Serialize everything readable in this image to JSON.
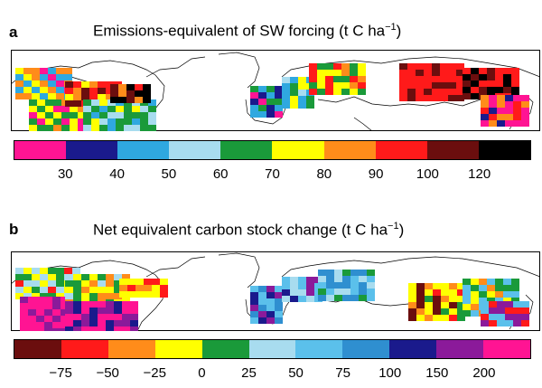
{
  "panel_a": {
    "letter": "a",
    "title_main": "Emissions-equivalent of SW forcing (t C ha",
    "title_exp": "−1",
    "title_close": ")",
    "colorbar_colors": [
      "#ff1493",
      "#1a1a8c",
      "#2fa8e0",
      "#a8dcef",
      "#1a9a3a",
      "#ffff00",
      "#ff8c1a",
      "#ff1a1a",
      "#6b0e0e",
      "#000000"
    ],
    "ticks": [
      "30",
      "40",
      "50",
      "60",
      "70",
      "80",
      "90",
      "100",
      "120"
    ]
  },
  "panel_b": {
    "letter": "b",
    "title_main": "Net equivalent carbon stock change (t C ha",
    "title_exp": "−1",
    "title_close": ")",
    "colorbar_colors": [
      "#6b0e0e",
      "#ff1a1a",
      "#ff8c1a",
      "#ffff00",
      "#1a9a3a",
      "#a8dcef",
      "#5bc0eb",
      "#2f8fd0",
      "#1a1a8c",
      "#8b1a9a",
      "#ff1493"
    ],
    "ticks": [
      "−75",
      "−50",
      "−25",
      "0",
      "25",
      "50",
      "75",
      "100",
      "150",
      "200"
    ]
  }
}
